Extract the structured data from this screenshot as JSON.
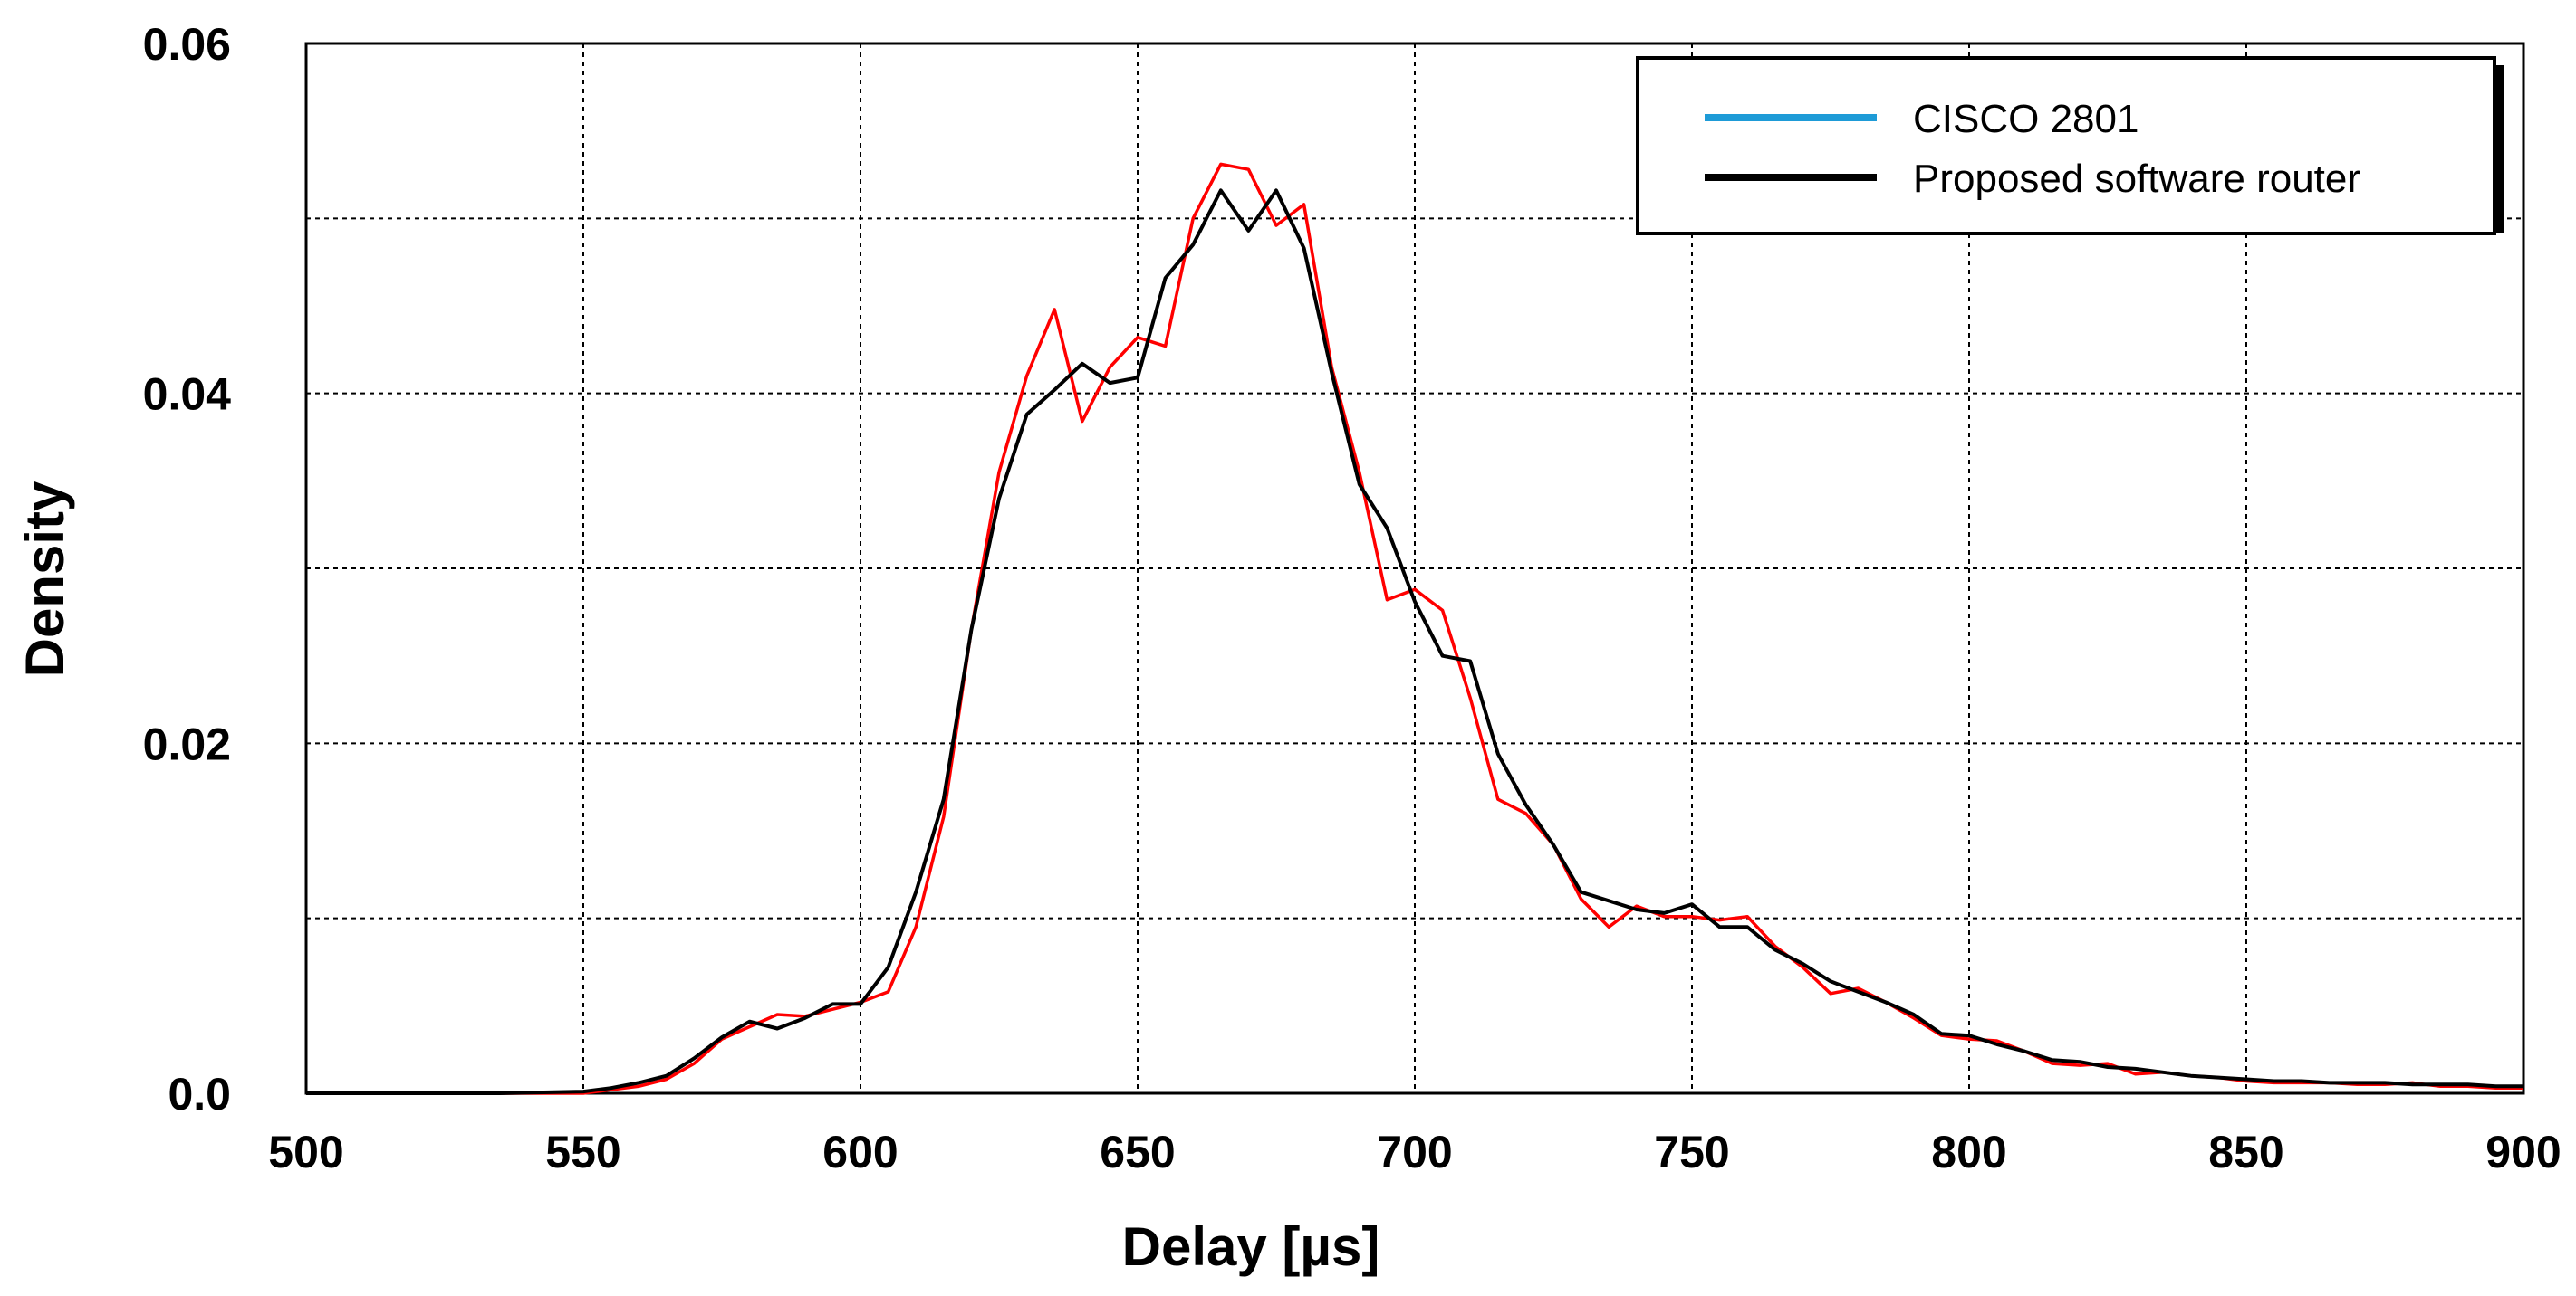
{
  "chart_data": {
    "type": "line",
    "xlabel": "Delay [µs]",
    "ylabel": "Density",
    "xlim": [
      500,
      900
    ],
    "ylim": [
      0,
      0.06
    ],
    "x_ticks": [
      500,
      550,
      600,
      650,
      700,
      750,
      800,
      850,
      900
    ],
    "x_tick_labels": [
      "500",
      "550",
      "600",
      "650",
      "700",
      "750",
      "800",
      "850",
      "900"
    ],
    "y_tick_values": [
      0,
      0.02,
      0.04,
      0.06
    ],
    "y_tick_labels": [
      "0.0",
      "0.02",
      "0.04",
      "0.06"
    ],
    "grid": true,
    "grid_y": [
      0.01,
      0.02,
      0.03,
      0.04,
      0.05
    ],
    "legend_position": "top-right",
    "legend": [
      {
        "label": "CISCO 2801",
        "color": "#1e9bd7"
      },
      {
        "label": "Proposed software router",
        "color": "#000000"
      }
    ],
    "series": [
      {
        "name": "CISCO 2801",
        "color": "#ff0000",
        "x": [
          500,
          535,
          550,
          555,
          560,
          565,
          570,
          575,
          580,
          585,
          590,
          595,
          600,
          605,
          610,
          615,
          620,
          625,
          630,
          635,
          640,
          645,
          650,
          655,
          660,
          665,
          670,
          675,
          680,
          685,
          690,
          695,
          700,
          705,
          710,
          715,
          720,
          725,
          730,
          735,
          740,
          745,
          750,
          755,
          760,
          765,
          770,
          775,
          780,
          785,
          790,
          795,
          800,
          805,
          810,
          815,
          820,
          825,
          830,
          835,
          840,
          845,
          850,
          855,
          860,
          865,
          870,
          875,
          880,
          885,
          890,
          895,
          900
        ],
        "y": [
          0.0,
          0.0,
          0.0,
          0.0002,
          0.0004,
          0.0008,
          0.0017,
          0.0031,
          0.0038,
          0.0045,
          0.0044,
          0.0048,
          0.0052,
          0.0058,
          0.0095,
          0.0158,
          0.0265,
          0.0355,
          0.041,
          0.0448,
          0.0384,
          0.0415,
          0.0432,
          0.0427,
          0.05,
          0.0531,
          0.0528,
          0.0496,
          0.0508,
          0.0415,
          0.0355,
          0.0282,
          0.0288,
          0.0276,
          0.0226,
          0.0168,
          0.016,
          0.0142,
          0.0111,
          0.0095,
          0.0107,
          0.0101,
          0.0101,
          0.0099,
          0.0101,
          0.0084,
          0.0072,
          0.0057,
          0.006,
          0.0052,
          0.0043,
          0.0033,
          0.0031,
          0.003,
          0.0024,
          0.0017,
          0.0016,
          0.0017,
          0.0011,
          0.0012,
          0.001,
          0.0009,
          0.0007,
          0.0006,
          0.0006,
          0.0006,
          0.0005,
          0.0005,
          0.0006,
          0.0004,
          0.0004,
          0.0003,
          0.0003
        ]
      },
      {
        "name": "Proposed software router",
        "color": "#000000",
        "x": [
          500,
          535,
          550,
          555,
          560,
          565,
          570,
          575,
          580,
          585,
          590,
          595,
          600,
          605,
          610,
          615,
          620,
          625,
          630,
          635,
          640,
          645,
          650,
          655,
          660,
          665,
          670,
          675,
          680,
          685,
          690,
          695,
          700,
          705,
          710,
          715,
          720,
          725,
          730,
          735,
          740,
          745,
          750,
          755,
          760,
          765,
          770,
          775,
          780,
          785,
          790,
          795,
          800,
          805,
          810,
          815,
          820,
          825,
          830,
          835,
          840,
          845,
          850,
          855,
          860,
          865,
          870,
          875,
          880,
          885,
          890,
          895,
          900
        ],
        "y": [
          0.0,
          0.0,
          0.0001,
          0.0003,
          0.0006,
          0.001,
          0.002,
          0.0032,
          0.0041,
          0.0037,
          0.0043,
          0.0051,
          0.0051,
          0.0072,
          0.0115,
          0.0168,
          0.0265,
          0.034,
          0.0388,
          0.0402,
          0.0417,
          0.0406,
          0.0409,
          0.0466,
          0.0485,
          0.0516,
          0.0493,
          0.0516,
          0.0483,
          0.0412,
          0.0348,
          0.0323,
          0.0281,
          0.025,
          0.0247,
          0.0194,
          0.0165,
          0.0142,
          0.0115,
          0.011,
          0.0105,
          0.0103,
          0.0108,
          0.0095,
          0.0095,
          0.0082,
          0.0074,
          0.0064,
          0.0058,
          0.0052,
          0.0045,
          0.0034,
          0.0033,
          0.0028,
          0.0024,
          0.0019,
          0.0018,
          0.0015,
          0.0014,
          0.0012,
          0.001,
          0.0009,
          0.0008,
          0.0007,
          0.0007,
          0.0006,
          0.0006,
          0.0006,
          0.0005,
          0.0005,
          0.0005,
          0.0004,
          0.0004
        ]
      }
    ]
  }
}
